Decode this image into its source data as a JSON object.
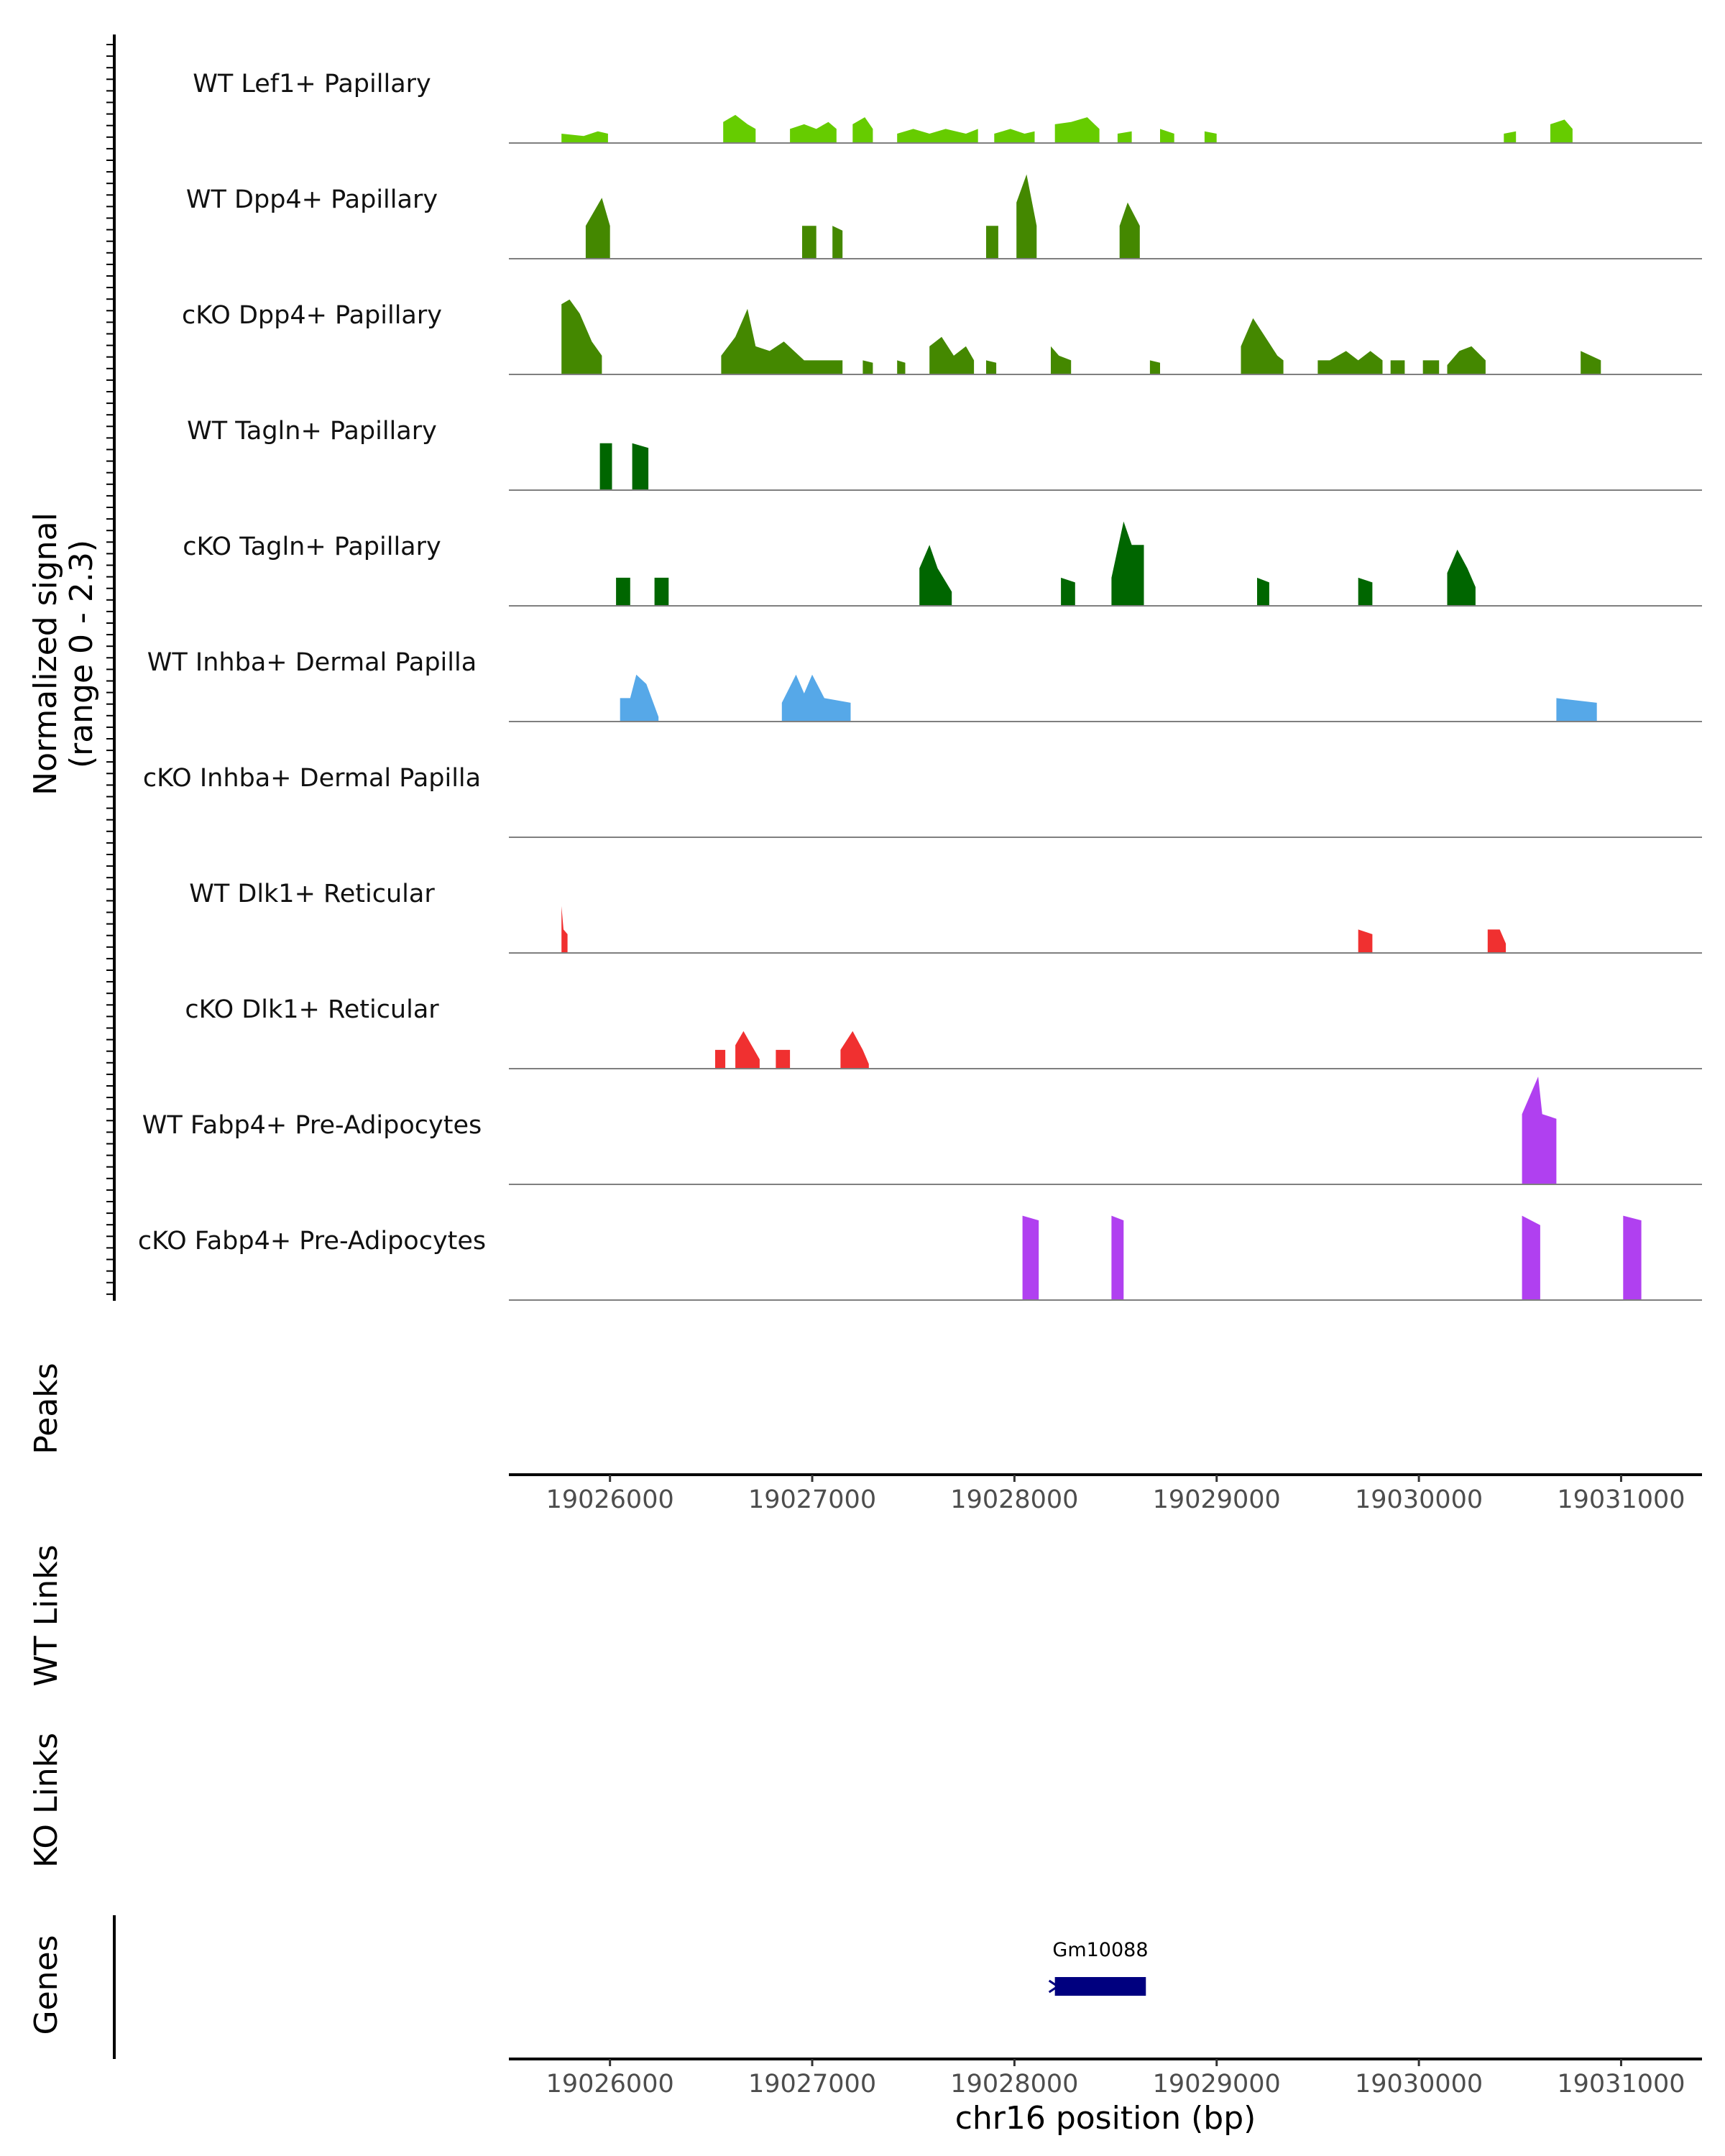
{
  "chart_data": {
    "type": "area",
    "title": "",
    "ylabel": "Normalized signal\n(range 0 - 2.3)",
    "xlabel": "chr16 position (bp)",
    "xlim": [
      19025500,
      19031400
    ],
    "ylim": [
      0,
      2.3
    ],
    "xticks": [
      19026000,
      19027000,
      19028000,
      19029000,
      19030000,
      19031000
    ],
    "track_labels": {
      "peaks": "Peaks",
      "wt_links": "WT Links",
      "ko_links": "KO Links",
      "genes": "Genes"
    },
    "series": [
      {
        "name": "WT Lef1+ Papillary",
        "color": "#66CC00",
        "regions": [
          [
            [
              19025760,
              0.2
            ],
            [
              19025870,
              0.15
            ],
            [
              19025940,
              0.25
            ],
            [
              19025990,
              0.2
            ]
          ],
          [
            [
              19026560,
              0.45
            ],
            [
              19026620,
              0.6
            ],
            [
              19026680,
              0.4
            ],
            [
              19026720,
              0.3
            ]
          ],
          [
            [
              19026890,
              0.3
            ],
            [
              19026960,
              0.4
            ],
            [
              19027020,
              0.3
            ],
            [
              19027080,
              0.45
            ],
            [
              19027120,
              0.3
            ]
          ],
          [
            [
              19027200,
              0.4
            ],
            [
              19027260,
              0.55
            ],
            [
              19027300,
              0.3
            ]
          ],
          [
            [
              19027420,
              0.2
            ],
            [
              19027500,
              0.3
            ],
            [
              19027580,
              0.2
            ],
            [
              19027660,
              0.3
            ],
            [
              19027760,
              0.2
            ],
            [
              19027820,
              0.3
            ]
          ],
          [
            [
              19027900,
              0.2
            ],
            [
              19027980,
              0.3
            ],
            [
              19028050,
              0.2
            ],
            [
              19028100,
              0.25
            ]
          ],
          [
            [
              19028200,
              0.4
            ],
            [
              19028280,
              0.45
            ],
            [
              19028360,
              0.55
            ],
            [
              19028420,
              0.3
            ]
          ],
          [
            [
              19028510,
              0.2
            ],
            [
              19028580,
              0.25
            ]
          ],
          [
            [
              19028720,
              0.3
            ],
            [
              19028790,
              0.2
            ]
          ],
          [
            [
              19028940,
              0.25
            ],
            [
              19029000,
              0.2
            ]
          ],
          [
            [
              19030420,
              0.2
            ],
            [
              19030480,
              0.25
            ]
          ],
          [
            [
              19030650,
              0.4
            ],
            [
              19030720,
              0.5
            ],
            [
              19030760,
              0.3
            ]
          ]
        ]
      },
      {
        "name": "WT Dpp4+ Papillary",
        "color": "#448800",
        "regions": [
          [
            [
              19025880,
              0.7
            ],
            [
              19025960,
              1.3
            ],
            [
              19026000,
              0.7
            ]
          ],
          [
            [
              19026950,
              0.7
            ],
            [
              19027020,
              0.7
            ]
          ],
          [
            [
              19027100,
              0.7
            ],
            [
              19027150,
              0.6
            ]
          ],
          [
            [
              19027860,
              0.7
            ],
            [
              19027920,
              0.7
            ]
          ],
          [
            [
              19028010,
              1.2
            ],
            [
              19028060,
              1.8
            ],
            [
              19028110,
              0.7
            ]
          ],
          [
            [
              19028520,
              0.7
            ],
            [
              19028560,
              1.2
            ],
            [
              19028620,
              0.7
            ]
          ]
        ]
      },
      {
        "name": "cKO Dpp4+ Papillary",
        "color": "#448800",
        "regions": [
          [
            [
              19025760,
              1.5
            ],
            [
              19025800,
              1.6
            ],
            [
              19025850,
              1.3
            ],
            [
              19025910,
              0.7
            ],
            [
              19025960,
              0.4
            ]
          ],
          [
            [
              19026550,
              0.4
            ],
            [
              19026620,
              0.8
            ],
            [
              19026680,
              1.4
            ],
            [
              19026720,
              0.6
            ],
            [
              19026790,
              0.5
            ],
            [
              19026860,
              0.7
            ],
            [
              19026960,
              0.3
            ],
            [
              19027150,
              0.3
            ]
          ],
          [
            [
              19027250,
              0.3
            ],
            [
              19027300,
              0.25
            ]
          ],
          [
            [
              19027420,
              0.3
            ],
            [
              19027460,
              0.25
            ]
          ],
          [
            [
              19027580,
              0.6
            ],
            [
              19027640,
              0.8
            ],
            [
              19027700,
              0.4
            ],
            [
              19027760,
              0.6
            ],
            [
              19027800,
              0.3
            ]
          ],
          [
            [
              19027860,
              0.3
            ],
            [
              19027910,
              0.25
            ]
          ],
          [
            [
              19028180,
              0.6
            ],
            [
              19028220,
              0.4
            ],
            [
              19028280,
              0.3
            ]
          ],
          [
            [
              19028670,
              0.3
            ],
            [
              19028720,
              0.25
            ]
          ],
          [
            [
              19029120,
              0.6
            ],
            [
              19029180,
              1.2
            ],
            [
              19029240,
              0.8
            ],
            [
              19029300,
              0.4
            ],
            [
              19029330,
              0.3
            ]
          ],
          [
            [
              19029500,
              0.3
            ],
            [
              19029560,
              0.3
            ],
            [
              19029640,
              0.5
            ],
            [
              19029700,
              0.3
            ],
            [
              19029760,
              0.5
            ],
            [
              19029820,
              0.3
            ]
          ],
          [
            [
              19029860,
              0.3
            ],
            [
              19029930,
              0.3
            ]
          ],
          [
            [
              19030020,
              0.3
            ],
            [
              19030100,
              0.3
            ]
          ],
          [
            [
              19030140,
              0.2
            ],
            [
              19030200,
              0.5
            ],
            [
              19030260,
              0.6
            ],
            [
              19030330,
              0.3
            ]
          ],
          [
            [
              19030800,
              0.5
            ],
            [
              19030850,
              0.4
            ],
            [
              19030900,
              0.3
            ]
          ]
        ]
      },
      {
        "name": "WT Tagln+ Papillary",
        "color": "#006600",
        "regions": [
          [
            [
              19025950,
              1.0
            ],
            [
              19026010,
              1.0
            ]
          ],
          [
            [
              19026110,
              1.0
            ],
            [
              19026190,
              0.9
            ]
          ]
        ]
      },
      {
        "name": "cKO Tagln+ Papillary",
        "color": "#006600",
        "regions": [
          [
            [
              19026030,
              0.6
            ],
            [
              19026100,
              0.6
            ]
          ],
          [
            [
              19026220,
              0.6
            ],
            [
              19026290,
              0.6
            ]
          ],
          [
            [
              19027530,
              0.8
            ],
            [
              19027580,
              1.3
            ],
            [
              19027620,
              0.8
            ],
            [
              19027690,
              0.3
            ]
          ],
          [
            [
              19028230,
              0.6
            ],
            [
              19028300,
              0.5
            ]
          ],
          [
            [
              19028480,
              0.6
            ],
            [
              19028540,
              1.8
            ],
            [
              19028580,
              1.3
            ],
            [
              19028640,
              1.3
            ]
          ],
          [
            [
              19029200,
              0.6
            ],
            [
              19029260,
              0.5
            ]
          ],
          [
            [
              19029700,
              0.6
            ],
            [
              19029770,
              0.5
            ]
          ],
          [
            [
              19030140,
              0.7
            ],
            [
              19030190,
              1.2
            ],
            [
              19030240,
              0.8
            ],
            [
              19030280,
              0.4
            ]
          ]
        ]
      },
      {
        "name": "WT Inhba+ Dermal Papilla",
        "color": "#56A8E8",
        "regions": [
          [
            [
              19026050,
              0.5
            ],
            [
              19026100,
              0.5
            ],
            [
              19026130,
              1.0
            ],
            [
              19026180,
              0.8
            ],
            [
              19026240,
              0.1
            ]
          ],
          [
            [
              19026850,
              0.4
            ],
            [
              19026920,
              1.0
            ],
            [
              19026960,
              0.6
            ],
            [
              19027000,
              1.0
            ],
            [
              19027060,
              0.5
            ],
            [
              19027190,
              0.4
            ]
          ],
          [
            [
              19030680,
              0.5
            ],
            [
              19030880,
              0.4
            ]
          ]
        ]
      },
      {
        "name": "cKO Inhba+ Dermal Papilla",
        "color": "#56A8E8",
        "regions": []
      },
      {
        "name": "WT Dlk1+ Reticular",
        "color": "#F03030",
        "regions": [
          [
            [
              19025760,
              1.0
            ],
            [
              19025770,
              0.5
            ],
            [
              19025790,
              0.4
            ]
          ],
          [
            [
              19029700,
              0.5
            ],
            [
              19029770,
              0.4
            ]
          ],
          [
            [
              19030340,
              0.5
            ],
            [
              19030400,
              0.5
            ],
            [
              19030430,
              0.2
            ]
          ]
        ]
      },
      {
        "name": "cKO Dlk1+ Reticular",
        "color": "#F03030",
        "regions": [
          [
            [
              19026520,
              0.4
            ],
            [
              19026570,
              0.4
            ]
          ],
          [
            [
              19026620,
              0.5
            ],
            [
              19026660,
              0.8
            ],
            [
              19026700,
              0.5
            ],
            [
              19026740,
              0.2
            ]
          ],
          [
            [
              19026820,
              0.4
            ],
            [
              19026890,
              0.4
            ]
          ],
          [
            [
              19027140,
              0.4
            ],
            [
              19027200,
              0.8
            ],
            [
              19027250,
              0.4
            ],
            [
              19027280,
              0.1
            ]
          ]
        ]
      },
      {
        "name": "WT Fabp4+ Pre-Adipocytes",
        "color": "#B040F0",
        "regions": [
          [
            [
              19030510,
              1.5
            ],
            [
              19030590,
              2.3
            ],
            [
              19030610,
              1.5
            ],
            [
              19030680,
              1.4
            ]
          ]
        ]
      },
      {
        "name": "cKO Fabp4+ Pre-Adipocytes",
        "color": "#B040F0",
        "regions": [
          [
            [
              19028040,
              1.8
            ],
            [
              19028120,
              1.7
            ]
          ],
          [
            [
              19028480,
              1.8
            ],
            [
              19028540,
              1.7
            ]
          ],
          [
            [
              19030510,
              1.8
            ],
            [
              19030600,
              1.6
            ]
          ],
          [
            [
              19031010,
              1.8
            ],
            [
              19031100,
              1.7
            ]
          ]
        ]
      }
    ],
    "genes": [
      {
        "name": "Gm10088",
        "start": 19028200,
        "end": 19028650,
        "strand": "-",
        "color": "#00007F"
      }
    ]
  }
}
